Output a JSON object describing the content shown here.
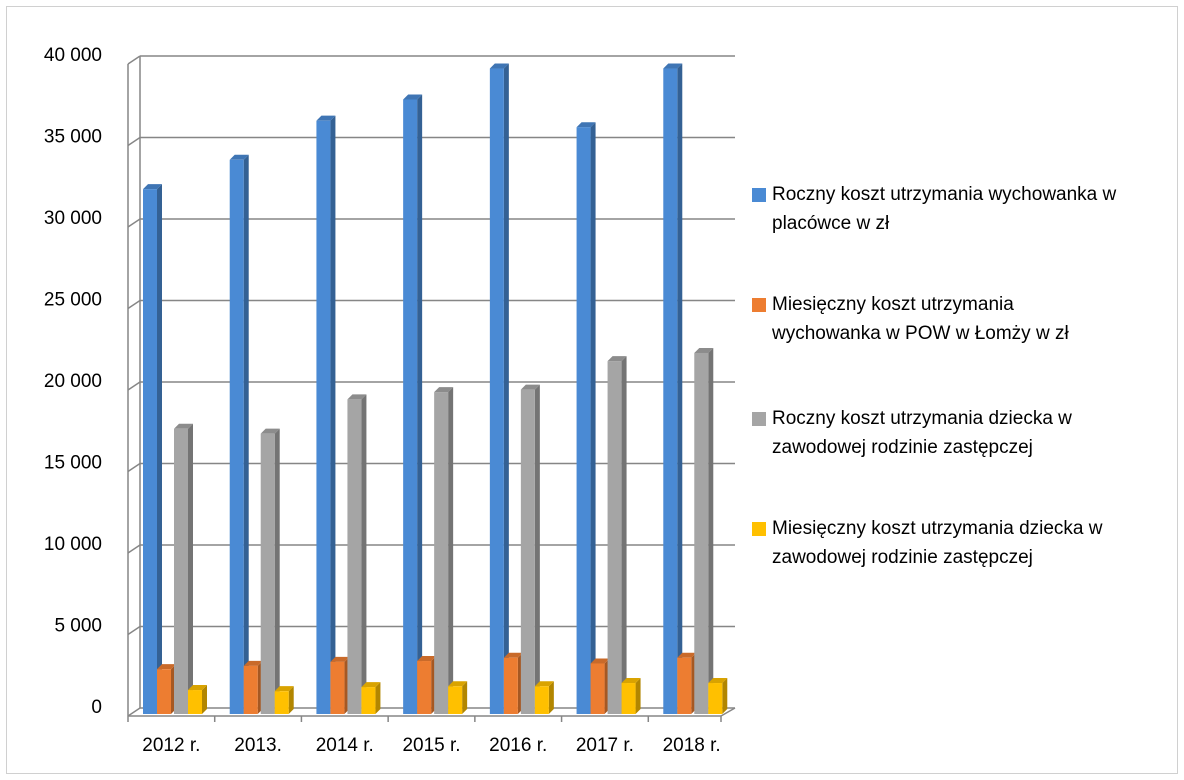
{
  "chart_data": {
    "type": "bar",
    "categories": [
      "2012 r.",
      "2013.",
      "2014 r.",
      "2015 r.",
      "2016 r.",
      "2017 r.",
      "2018 r."
    ],
    "series": [
      {
        "name": "Roczny koszt utrzymania wychowanka w placówce w zł",
        "color": "#4a8ad4",
        "values": [
          32200,
          34000,
          36400,
          37700,
          39600,
          36000,
          39600
        ]
      },
      {
        "name": "Miesięczny koszt utrzymania wychowanka w POW w Łomży w zł",
        "color": "#ed7d31",
        "values": [
          2750,
          2950,
          3200,
          3250,
          3450,
          3100,
          3450
        ]
      },
      {
        "name": "Roczny koszt utrzymania dziecka w zawodowej rodzinie zastępczej",
        "color": "#a5a5a5",
        "values": [
          17500,
          17200,
          19300,
          19750,
          19900,
          21650,
          22150
        ]
      },
      {
        "name": "Miesięczny koszt utrzymania dziecka w zawodowej rodzinie zastępczej",
        "color": "#ffc000",
        "values": [
          1470,
          1400,
          1650,
          1700,
          1700,
          1900,
          1900
        ]
      }
    ],
    "ylim": [
      0,
      40000
    ],
    "yticks": [
      0,
      {
        "value": 5000,
        "label": "5 000"
      },
      {
        "value": 10000,
        "label": "10 000"
      },
      {
        "value": 15000,
        "label": "15 000"
      },
      {
        "value": 20000,
        "label": "20 000"
      },
      {
        "value": 25000,
        "label": "25 000"
      },
      {
        "value": 30000,
        "label": "30 000"
      },
      {
        "value": 35000,
        "label": "35 000"
      },
      {
        "value": 40000,
        "label": "40 000"
      }
    ],
    "grid": true,
    "legend": "right"
  }
}
